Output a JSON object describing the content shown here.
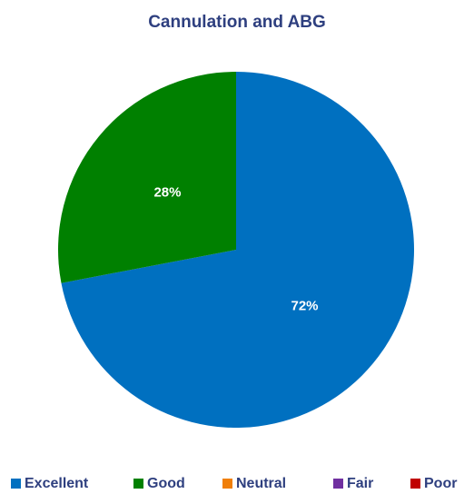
{
  "chart_data": {
    "type": "pie",
    "title": "Cannulation and ABG",
    "categories": [
      "Excellent",
      "Good",
      "Neutral",
      "Fair",
      "Poor"
    ],
    "values": [
      72,
      28,
      0,
      0,
      0
    ],
    "value_labels": [
      "72%",
      "28%",
      null,
      null,
      null
    ],
    "colors": [
      "#0070c0",
      "#008000",
      "#f07f09",
      "#7030a0",
      "#c00000"
    ],
    "legend": "bottom"
  }
}
